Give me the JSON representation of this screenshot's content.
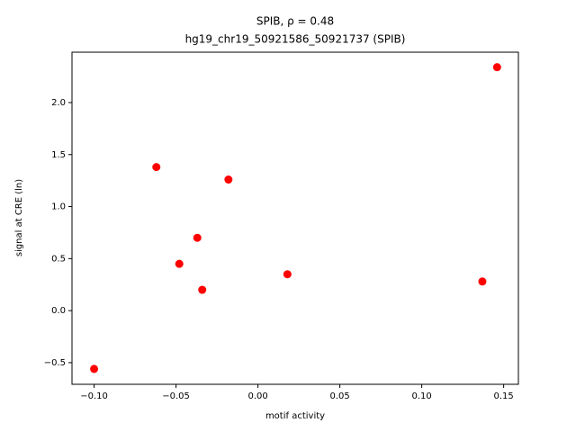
{
  "chart_data": {
    "type": "scatter",
    "title": "SPIB, ρ = 0.48",
    "subtitle": "hg19_chr19_50921586_50921737 (SPIB)",
    "x_label": "motif activity",
    "y_label": "signal at CRE (ln)",
    "color": "#ff0000",
    "x": [
      -0.1,
      -0.062,
      -0.048,
      -0.037,
      -0.034,
      -0.018,
      0.018,
      0.137,
      0.146
    ],
    "values": [
      -0.56,
      1.38,
      0.45,
      0.7,
      0.2,
      1.26,
      0.35,
      0.28,
      2.34
    ],
    "xlim": [
      -0.1135,
      0.159
    ],
    "ylim": [
      -0.708,
      2.484
    ],
    "xticks": [
      {
        "value": -0.1,
        "label": "−0.10"
      },
      {
        "value": -0.05,
        "label": "−0.05"
      },
      {
        "value": 0,
        "label": "0.00"
      },
      {
        "value": 0.05,
        "label": "0.05"
      },
      {
        "value": 0.1,
        "label": "0.10"
      },
      {
        "value": 0.15,
        "label": "0.15"
      }
    ],
    "yticks": [
      {
        "value": -0.5,
        "label": "−0.5"
      },
      {
        "value": 0,
        "label": "0.0"
      },
      {
        "value": 0.5,
        "label": "0.5"
      },
      {
        "value": 1,
        "label": "1.0"
      },
      {
        "value": 1.5,
        "label": "1.5"
      },
      {
        "value": 2,
        "label": "2.0"
      }
    ]
  }
}
